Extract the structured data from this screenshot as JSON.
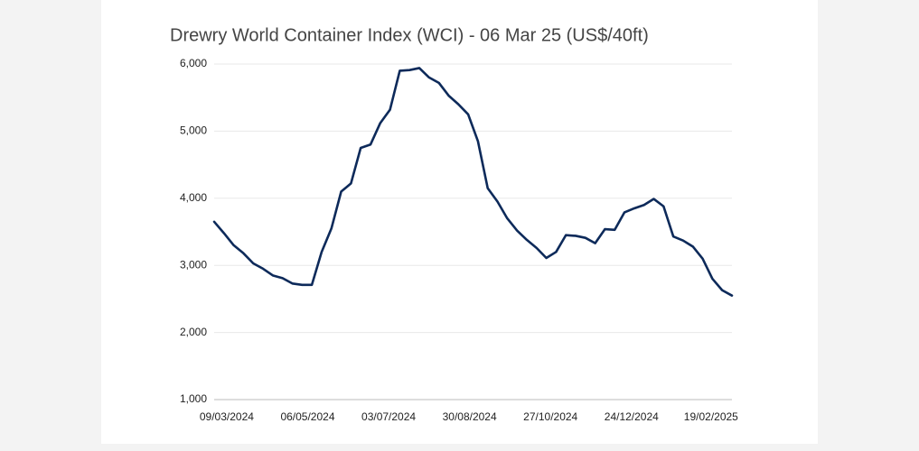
{
  "chart_data": {
    "type": "line",
    "title": "Drewry World Container Index (WCI) - 06 Mar 25 (US$/40ft)",
    "x": [
      "29/02/2024",
      "07/03/2024",
      "14/03/2024",
      "21/03/2024",
      "28/03/2024",
      "04/04/2024",
      "11/04/2024",
      "18/04/2024",
      "25/04/2024",
      "02/05/2024",
      "09/05/2024",
      "16/05/2024",
      "23/05/2024",
      "30/05/2024",
      "06/06/2024",
      "13/06/2024",
      "20/06/2024",
      "27/06/2024",
      "04/07/2024",
      "11/07/2024",
      "18/07/2024",
      "25/07/2024",
      "01/08/2024",
      "08/08/2024",
      "15/08/2024",
      "22/08/2024",
      "29/08/2024",
      "05/09/2024",
      "12/09/2024",
      "19/09/2024",
      "26/09/2024",
      "03/10/2024",
      "10/10/2024",
      "17/10/2024",
      "24/10/2024",
      "31/10/2024",
      "07/11/2024",
      "14/11/2024",
      "21/11/2024",
      "28/11/2024",
      "05/12/2024",
      "12/12/2024",
      "19/12/2024",
      "26/12/2024",
      "02/01/2025",
      "09/01/2025",
      "16/01/2025",
      "23/01/2025",
      "30/01/2025",
      "06/02/2025",
      "13/02/2025",
      "20/02/2025",
      "27/02/2025",
      "06/03/2025"
    ],
    "series": [
      {
        "color": "#0d2a5a",
        "values": [
          3650,
          3480,
          3300,
          3180,
          3030,
          2950,
          2850,
          2810,
          2730,
          2710,
          2710,
          3200,
          3550,
          4100,
          4220,
          4750,
          4800,
          5120,
          5320,
          5900,
          5910,
          5940,
          5800,
          5720,
          5530,
          5400,
          5250,
          4850,
          4150,
          3950,
          3700,
          3520,
          3380,
          3260,
          3110,
          3200,
          3450,
          3440,
          3410,
          3330,
          3540,
          3530,
          3790,
          3850,
          3900,
          3990,
          3880,
          3430,
          3370,
          3280,
          3100,
          2800,
          2630,
          2550
        ]
      }
    ],
    "xlim": [
      "29/02/2024",
      "06/03/2025"
    ],
    "xticks": [
      "09/03/2024",
      "06/05/2024",
      "03/07/2024",
      "30/08/2024",
      "27/10/2024",
      "24/12/2024",
      "19/02/2025"
    ],
    "ylim": [
      1000,
      6000
    ],
    "yticks": [
      {
        "value": 1000,
        "label": "1,000"
      },
      {
        "value": 2000,
        "label": "2,000"
      },
      {
        "value": 3000,
        "label": "3,000"
      },
      {
        "value": 4000,
        "label": "4,000"
      },
      {
        "value": 5000,
        "label": "5,000"
      },
      {
        "value": 6000,
        "label": "6,000"
      }
    ],
    "grid": true
  }
}
